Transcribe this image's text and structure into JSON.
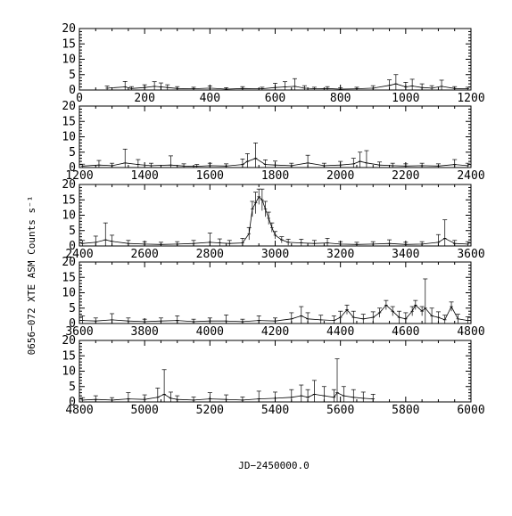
{
  "figure": {
    "ylabel": "0656−072 XTE ASM Counts s⁻¹",
    "xlabel": "JD−2450000.0"
  },
  "chart_data": [
    {
      "type": "line",
      "xlim": [
        0,
        1200
      ],
      "ylim": [
        0,
        20
      ],
      "x_ticks": [
        0,
        200,
        400,
        600,
        800,
        1000,
        1200
      ],
      "y_ticks": [
        0,
        5,
        10,
        15,
        20
      ],
      "series": [
        {
          "x": [
            85,
            140,
            160,
            200,
            230,
            250,
            270,
            300,
            350,
            400,
            450,
            500,
            560,
            600,
            630,
            660,
            690,
            720,
            760,
            800,
            850,
            900,
            950,
            970,
            1000,
            1020,
            1050,
            1080,
            1110,
            1150,
            1190
          ],
          "y": [
            0.6,
            1.0,
            0.5,
            0.8,
            1.2,
            1.0,
            0.8,
            0.5,
            0.4,
            0.6,
            0.3,
            0.5,
            0.4,
            0.8,
            1.0,
            1.2,
            0.6,
            0.4,
            0.5,
            0.3,
            0.4,
            0.6,
            1.5,
            2.0,
            1.0,
            1.3,
            0.8,
            0.6,
            1.2,
            0.5,
            0.4
          ],
          "err": [
            0.7,
            1.8,
            0.6,
            0.9,
            1.5,
            1.3,
            0.9,
            0.6,
            0.5,
            0.7,
            0.4,
            0.6,
            0.5,
            1.4,
            1.7,
            2.5,
            0.8,
            0.5,
            0.6,
            0.4,
            0.5,
            0.8,
            1.8,
            3.0,
            1.5,
            2.2,
            1.2,
            0.8,
            2.0,
            0.6,
            0.5
          ]
        }
      ]
    },
    {
      "type": "line",
      "xlim": [
        1200,
        2400
      ],
      "ylim": [
        0,
        20
      ],
      "x_ticks": [
        1200,
        1400,
        1600,
        1800,
        2000,
        2200,
        2400
      ],
      "y_ticks": [
        0,
        5,
        10,
        15,
        20
      ],
      "series": [
        {
          "x": [
            1210,
            1260,
            1300,
            1340,
            1380,
            1420,
            1480,
            1520,
            1560,
            1600,
            1650,
            1700,
            1715,
            1740,
            1770,
            1800,
            1850,
            1900,
            1950,
            2000,
            2040,
            2060,
            2080,
            2120,
            2160,
            2200,
            2250,
            2300,
            2350,
            2390
          ],
          "y": [
            0.5,
            0.8,
            0.6,
            1.5,
            1.0,
            0.6,
            0.8,
            0.5,
            0.4,
            0.6,
            0.5,
            1.0,
            2.0,
            3.0,
            1.0,
            0.8,
            0.6,
            1.5,
            0.6,
            0.8,
            1.2,
            2.0,
            1.5,
            0.8,
            0.6,
            0.5,
            0.6,
            0.5,
            1.0,
            0.6
          ],
          "err": [
            0.6,
            1.5,
            0.8,
            4.5,
            1.6,
            0.8,
            3.0,
            0.7,
            0.6,
            0.8,
            0.7,
            1.8,
            2.5,
            5.0,
            1.5,
            1.3,
            0.8,
            2.5,
            0.8,
            1.2,
            1.8,
            3.0,
            4.0,
            1.0,
            0.8,
            0.7,
            0.8,
            0.7,
            1.6,
            0.8
          ]
        }
      ]
    },
    {
      "type": "line",
      "xlim": [
        2400,
        3600
      ],
      "ylim": [
        0,
        20
      ],
      "x_ticks": [
        2400,
        2600,
        2800,
        3000,
        3200,
        3400,
        3600
      ],
      "y_ticks": [
        0,
        5,
        10,
        15,
        20
      ],
      "series": [
        {
          "x": [
            2410,
            2450,
            2480,
            2500,
            2550,
            2600,
            2650,
            2700,
            2750,
            2800,
            2830,
            2860,
            2900,
            2920,
            2930,
            2940,
            2950,
            2960,
            2970,
            2980,
            2990,
            3000,
            3020,
            3040,
            3080,
            3120,
            3160,
            3200,
            3250,
            3300,
            3350,
            3400,
            3450,
            3500,
            3520,
            3550,
            3590
          ],
          "y": [
            0.8,
            1.2,
            2.0,
            1.5,
            0.8,
            0.6,
            0.5,
            0.6,
            0.8,
            1.2,
            1.0,
            0.8,
            1.0,
            4.0,
            12.0,
            14.0,
            16.0,
            15.0,
            12.0,
            9.0,
            6.0,
            3.5,
            2.0,
            1.2,
            1.0,
            0.8,
            1.0,
            0.6,
            0.5,
            0.6,
            0.8,
            0.5,
            0.6,
            1.2,
            2.5,
            0.8,
            0.6
          ],
          "err": [
            1.0,
            2.0,
            5.5,
            2.0,
            1.0,
            0.8,
            0.7,
            0.8,
            1.0,
            3.0,
            1.3,
            1.0,
            1.5,
            2.0,
            2.5,
            3.5,
            2.5,
            3.5,
            2.5,
            2.0,
            1.5,
            1.2,
            1.0,
            1.0,
            1.2,
            1.0,
            1.5,
            0.8,
            0.7,
            0.8,
            1.2,
            0.7,
            0.8,
            2.5,
            6.0,
            1.0,
            0.8
          ]
        }
      ]
    },
    {
      "type": "line",
      "xlim": [
        3600,
        4800
      ],
      "ylim": [
        0,
        20
      ],
      "x_ticks": [
        3600,
        3800,
        4000,
        4200,
        4400,
        4600,
        4800
      ],
      "y_ticks": [
        0,
        5,
        10,
        15,
        20
      ],
      "series": [
        {
          "x": [
            3610,
            3650,
            3700,
            3750,
            3800,
            3850,
            3900,
            3950,
            4000,
            4050,
            4100,
            4150,
            4200,
            4250,
            4280,
            4300,
            4340,
            4380,
            4400,
            4420,
            4440,
            4470,
            4500,
            4520,
            4540,
            4560,
            4580,
            4600,
            4620,
            4630,
            4650,
            4660,
            4680,
            4700,
            4720,
            4740,
            4760,
            4790
          ],
          "y": [
            1.0,
            0.8,
            1.2,
            0.8,
            0.6,
            0.8,
            1.0,
            0.6,
            0.8,
            0.8,
            0.6,
            1.0,
            0.8,
            1.5,
            2.5,
            1.5,
            1.2,
            1.0,
            2.0,
            4.5,
            2.0,
            1.5,
            2.0,
            3.5,
            6.0,
            4.0,
            2.0,
            1.5,
            4.0,
            6.0,
            4.0,
            5.0,
            2.5,
            2.0,
            1.2,
            5.5,
            1.5,
            1.0
          ],
          "err": [
            1.5,
            1.0,
            2.0,
            1.0,
            0.8,
            1.0,
            1.5,
            0.8,
            1.0,
            2.0,
            0.8,
            1.5,
            1.0,
            2.0,
            3.0,
            2.0,
            1.5,
            1.5,
            2.0,
            1.5,
            2.0,
            1.5,
            1.8,
            1.5,
            1.5,
            1.5,
            2.0,
            2.0,
            1.5,
            1.5,
            1.5,
            9.5,
            2.5,
            1.8,
            1.5,
            1.5,
            1.5,
            1.2
          ]
        }
      ]
    },
    {
      "type": "line",
      "xlim": [
        4800,
        6000
      ],
      "ylim": [
        0,
        20
      ],
      "x_ticks": [
        4800,
        5000,
        5200,
        5400,
        5600,
        5800,
        6000
      ],
      "y_ticks": [
        0,
        5,
        10,
        15,
        20
      ],
      "series": [
        {
          "x": [
            4810,
            4850,
            4900,
            4950,
            5000,
            5040,
            5060,
            5080,
            5100,
            5150,
            5200,
            5250,
            5300,
            5350,
            5400,
            5450,
            5480,
            5500,
            5520,
            5550,
            5580,
            5590,
            5610,
            5640,
            5670,
            5700
          ],
          "y": [
            0.6,
            0.8,
            0.6,
            1.0,
            0.8,
            1.5,
            2.5,
            1.2,
            0.8,
            0.6,
            1.0,
            0.8,
            0.6,
            1.0,
            1.2,
            1.5,
            2.0,
            1.5,
            2.5,
            2.0,
            1.5,
            3.0,
            2.0,
            1.5,
            1.2,
            1.0
          ],
          "err": [
            0.8,
            1.2,
            0.8,
            2.0,
            1.5,
            3.0,
            8.0,
            2.0,
            1.2,
            1.0,
            2.0,
            1.5,
            1.0,
            2.5,
            2.0,
            2.5,
            3.5,
            2.5,
            4.5,
            3.0,
            2.5,
            11.0,
            3.0,
            2.5,
            2.0,
            1.5
          ]
        }
      ]
    }
  ]
}
